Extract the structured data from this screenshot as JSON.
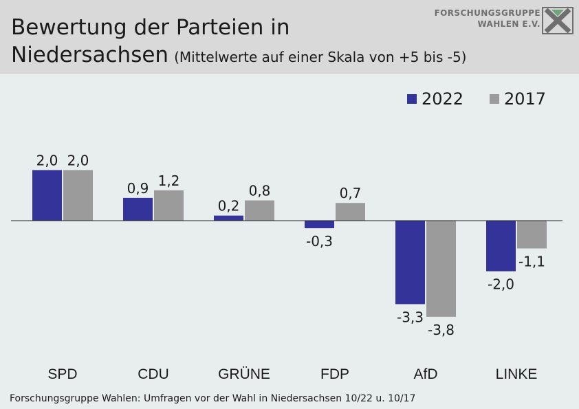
{
  "header": {
    "title_line1": "Bewertung der Parteien in",
    "title_line2": "Niedersachsen",
    "subtitle": "(Mittelwerte auf einer Skala von +5 bis -5)"
  },
  "logo": {
    "line1": "FORSCHUNGSGRUPPE",
    "line2": "WAHLEN E.V."
  },
  "footer": {
    "source": "Forschungsgruppe Wahlen: Umfragen vor der Wahl in Niedersachsen 10/22 u. 10/17"
  },
  "colors": {
    "series_2022": "#33339a",
    "series_2017": "#9b9b9b",
    "background": "#e8eeed",
    "header": "#d9d9d9"
  },
  "chart_data": {
    "type": "bar",
    "title": "Bewertung der Parteien in Niedersachsen",
    "subtitle": "(Mittelwerte auf einer Skala von +5 bis -5)",
    "categories": [
      "SPD",
      "CDU",
      "GRÜNE",
      "FDP",
      "AfD",
      "LINKE"
    ],
    "series": [
      {
        "name": "2022",
        "values": [
          2.0,
          0.9,
          0.2,
          -0.3,
          -3.3,
          -2.0
        ],
        "labels": [
          "2,0",
          "0,9",
          "0,2",
          "-0,3",
          "-3,3",
          "-2,0"
        ]
      },
      {
        "name": "2017",
        "values": [
          2.0,
          1.2,
          0.8,
          0.7,
          -3.8,
          -1.1
        ],
        "labels": [
          "2,0",
          "1,2",
          "0,8",
          "0,7",
          "-3,8",
          "-1,1"
        ]
      }
    ],
    "ylim": [
      -5,
      5
    ],
    "xlabel": "",
    "ylabel": "",
    "grid": false,
    "legend_position": "top-right"
  }
}
